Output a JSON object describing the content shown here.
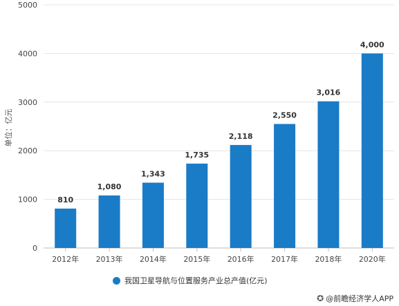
{
  "chart_data": {
    "type": "bar",
    "categories": [
      "2012年",
      "2013年",
      "2014年",
      "2015年",
      "2016年",
      "2017年",
      "2018年",
      "2020年"
    ],
    "values": [
      810,
      1080,
      1343,
      1735,
      2118,
      2550,
      3016,
      4000
    ],
    "data_labels": [
      "810",
      "1,080",
      "1,343",
      "1,735",
      "2,118",
      "2,550",
      "3,016",
      "4,000"
    ],
    "yticks": [
      0,
      1000,
      2000,
      3000,
      4000,
      5000
    ],
    "ylim": [
      0,
      5000
    ],
    "ylabel": "单位：亿元",
    "xlabel": "",
    "grid": true,
    "legend_position": "bottom",
    "series": [
      {
        "name": "我国卫星导航与位置服务产业总产值(亿元)",
        "color": "#1a7bc7"
      }
    ]
  },
  "legend": {
    "label": "我国卫星导航与位置服务产业总产值(亿元)",
    "color": "#1a7bc7"
  },
  "source": {
    "icon": "paw-icon",
    "text": "@前瞻经济学人APP"
  },
  "colors": {
    "bar": "#1a7bc7",
    "grid": "#e4e4e4",
    "axis": "#bdbdbd"
  }
}
